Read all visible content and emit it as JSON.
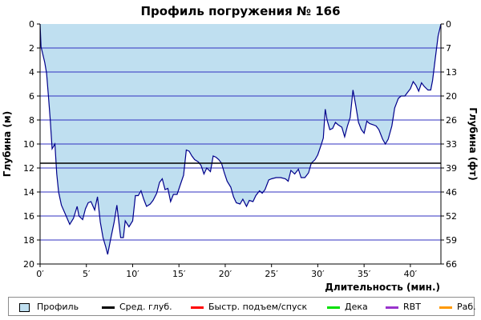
{
  "colors": {
    "fill": "#bfdff0",
    "profile_line": "#00008b",
    "grid": "#3030c0",
    "avg_depth": "#000000",
    "fast_ascent": "#ff0000",
    "deco": "#00e000",
    "rbt": "#9933cc",
    "work": "#ff9900"
  },
  "chart_data": {
    "type": "area",
    "title": "Профиль погружения № 166",
    "xlabel": "Длительность (мин.)",
    "ylabel_left": "Глубина (м)",
    "ylabel_right": "Глубина (фт)",
    "xlim": [
      0,
      43.3
    ],
    "ylim": [
      0,
      20
    ],
    "y_inverted": true,
    "x_ticks": [
      0,
      5,
      10,
      15,
      20,
      25,
      30,
      35,
      40
    ],
    "x_tick_labels": [
      "0′",
      "5′",
      "10′",
      "15′",
      "20′",
      "25′",
      "30′",
      "35′",
      "40′"
    ],
    "y_ticks_left": [
      0,
      2,
      4,
      6,
      8,
      10,
      12,
      14,
      16,
      18,
      20
    ],
    "y_ticks_right_labels": [
      "0",
      "7",
      "13",
      "20",
      "26",
      "33",
      "39",
      "46",
      "52",
      "59",
      "66"
    ],
    "grid": "horizontal",
    "avg_depth": 11.6,
    "series": [
      {
        "name": "Профиль",
        "points": [
          [
            0,
            0
          ],
          [
            0.1,
            1.9
          ],
          [
            0.5,
            3.2
          ],
          [
            0.7,
            4.1
          ],
          [
            0.9,
            6.0
          ],
          [
            1.1,
            8.0
          ],
          [
            1.3,
            10.4
          ],
          [
            1.6,
            10.0
          ],
          [
            1.8,
            12.5
          ],
          [
            2.0,
            14.0
          ],
          [
            2.3,
            15.1
          ],
          [
            2.7,
            15.8
          ],
          [
            3.2,
            16.7
          ],
          [
            3.6,
            16.2
          ],
          [
            4.0,
            15.2
          ],
          [
            4.2,
            16.0
          ],
          [
            4.6,
            16.3
          ],
          [
            4.9,
            15.4
          ],
          [
            5.2,
            14.9
          ],
          [
            5.5,
            14.8
          ],
          [
            5.9,
            15.5
          ],
          [
            6.2,
            14.4
          ],
          [
            6.5,
            16.5
          ],
          [
            6.8,
            17.8
          ],
          [
            7.1,
            18.6
          ],
          [
            7.3,
            19.2
          ],
          [
            7.6,
            18.0
          ],
          [
            8.0,
            16.5
          ],
          [
            8.3,
            15.1
          ],
          [
            8.7,
            17.8
          ],
          [
            9.0,
            17.8
          ],
          [
            9.2,
            16.4
          ],
          [
            9.6,
            16.9
          ],
          [
            10.0,
            16.4
          ],
          [
            10.3,
            14.3
          ],
          [
            10.6,
            14.3
          ],
          [
            10.9,
            13.9
          ],
          [
            11.2,
            14.6
          ],
          [
            11.5,
            15.2
          ],
          [
            11.9,
            15.0
          ],
          [
            12.2,
            14.7
          ],
          [
            12.6,
            14.1
          ],
          [
            12.9,
            13.2
          ],
          [
            13.2,
            12.9
          ],
          [
            13.5,
            13.8
          ],
          [
            13.8,
            13.7
          ],
          [
            14.1,
            14.8
          ],
          [
            14.4,
            14.2
          ],
          [
            14.8,
            14.2
          ],
          [
            15.1,
            13.5
          ],
          [
            15.5,
            12.6
          ],
          [
            15.8,
            10.5
          ],
          [
            16.1,
            10.6
          ],
          [
            16.4,
            11.0
          ],
          [
            16.7,
            11.3
          ],
          [
            17.1,
            11.5
          ],
          [
            17.4,
            11.8
          ],
          [
            17.7,
            12.5
          ],
          [
            18.0,
            12.0
          ],
          [
            18.4,
            12.3
          ],
          [
            18.7,
            11.0
          ],
          [
            19.0,
            11.1
          ],
          [
            19.3,
            11.3
          ],
          [
            19.6,
            11.6
          ],
          [
            19.9,
            12.4
          ],
          [
            20.2,
            13.1
          ],
          [
            20.6,
            13.6
          ],
          [
            20.9,
            14.4
          ],
          [
            21.2,
            14.9
          ],
          [
            21.6,
            15.0
          ],
          [
            21.9,
            14.6
          ],
          [
            22.3,
            15.2
          ],
          [
            22.6,
            14.7
          ],
          [
            23.0,
            14.8
          ],
          [
            23.3,
            14.3
          ],
          [
            23.7,
            13.9
          ],
          [
            24.0,
            14.1
          ],
          [
            24.3,
            13.8
          ],
          [
            24.7,
            13.0
          ],
          [
            25.0,
            12.9
          ],
          [
            25.5,
            12.8
          ],
          [
            26.0,
            12.8
          ],
          [
            26.5,
            12.9
          ],
          [
            26.8,
            13.1
          ],
          [
            27.1,
            12.2
          ],
          [
            27.5,
            12.5
          ],
          [
            27.9,
            12.1
          ],
          [
            28.2,
            12.8
          ],
          [
            28.6,
            12.8
          ],
          [
            29.0,
            12.4
          ],
          [
            29.3,
            11.6
          ],
          [
            29.7,
            11.3
          ],
          [
            30.0,
            10.9
          ],
          [
            30.4,
            10.0
          ],
          [
            30.6,
            9.5
          ],
          [
            30.8,
            7.1
          ],
          [
            31.0,
            8.0
          ],
          [
            31.3,
            8.8
          ],
          [
            31.6,
            8.7
          ],
          [
            31.9,
            8.2
          ],
          [
            32.2,
            8.4
          ],
          [
            32.6,
            8.6
          ],
          [
            32.9,
            9.4
          ],
          [
            33.2,
            8.5
          ],
          [
            33.5,
            7.8
          ],
          [
            33.8,
            5.5
          ],
          [
            34.1,
            6.8
          ],
          [
            34.4,
            8.2
          ],
          [
            34.7,
            8.8
          ],
          [
            35.0,
            9.1
          ],
          [
            35.3,
            8.1
          ],
          [
            35.6,
            8.3
          ],
          [
            36.0,
            8.4
          ],
          [
            36.3,
            8.5
          ],
          [
            36.6,
            8.8
          ],
          [
            37.0,
            9.6
          ],
          [
            37.3,
            10.0
          ],
          [
            37.6,
            9.6
          ],
          [
            38.0,
            8.5
          ],
          [
            38.3,
            7.0
          ],
          [
            38.7,
            6.2
          ],
          [
            39.0,
            6.0
          ],
          [
            39.4,
            6.0
          ],
          [
            39.7,
            5.7
          ],
          [
            40.0,
            5.4
          ],
          [
            40.3,
            4.8
          ],
          [
            40.6,
            5.1
          ],
          [
            40.9,
            5.6
          ],
          [
            41.2,
            4.9
          ],
          [
            41.5,
            5.2
          ],
          [
            41.9,
            5.5
          ],
          [
            42.2,
            5.5
          ],
          [
            42.4,
            4.7
          ],
          [
            42.7,
            2.8
          ],
          [
            43.0,
            1.0
          ],
          [
            43.3,
            0
          ]
        ]
      }
    ],
    "legend": {
      "placement": "bottom",
      "items": [
        {
          "name": "Профиль",
          "style": "box",
          "color": "#bfdff0"
        },
        {
          "name": "Сред. глуб.",
          "style": "line",
          "color": "#000000"
        },
        {
          "name": "Быстр. подъем/спуск",
          "style": "line",
          "color": "#ff0000"
        },
        {
          "name": "Дека",
          "style": "line",
          "color": "#00e000"
        },
        {
          "name": "RBT",
          "style": "line",
          "color": "#9933cc"
        },
        {
          "name": "Раб.",
          "style": "line",
          "color": "#ff9900"
        }
      ]
    }
  }
}
